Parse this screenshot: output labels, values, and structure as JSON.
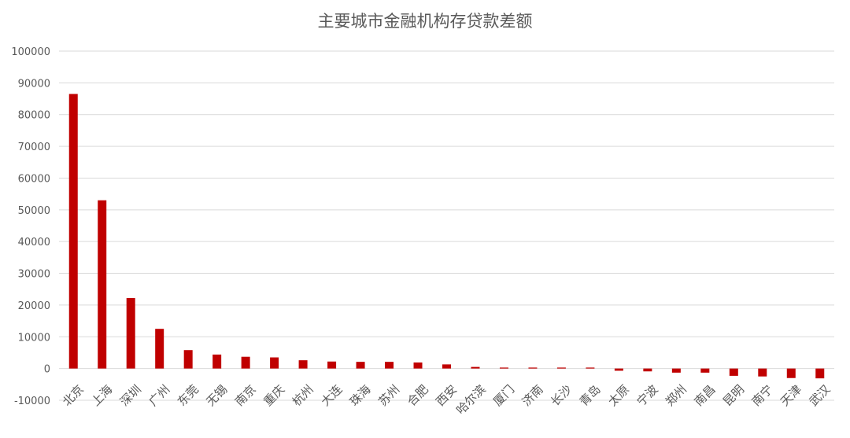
{
  "chart_data": {
    "type": "bar",
    "title": "主要城市金融机构存贷款差额",
    "xlabel": "",
    "ylabel": "",
    "ylim": [
      -10000,
      100000
    ],
    "ytick_step": 10000,
    "grid": true,
    "legend": "none",
    "bar_color": "#c00000",
    "categories": [
      "北京",
      "上海",
      "深圳",
      "广州",
      "东莞",
      "无锡",
      "南京",
      "重庆",
      "杭州",
      "大连",
      "珠海",
      "苏州",
      "合肥",
      "西安",
      "哈尔滨",
      "厦门",
      "济南",
      "长沙",
      "青岛",
      "太原",
      "宁波",
      "郑州",
      "南昌",
      "昆明",
      "南宁",
      "天津",
      "武汉"
    ],
    "values": [
      86500,
      53000,
      22200,
      12500,
      5800,
      4400,
      3700,
      3500,
      2600,
      2200,
      2100,
      2100,
      1900,
      1300,
      500,
      300,
      300,
      300,
      300,
      -700,
      -900,
      -1300,
      -1300,
      -2300,
      -2500,
      -3000,
      -3100
    ]
  }
}
